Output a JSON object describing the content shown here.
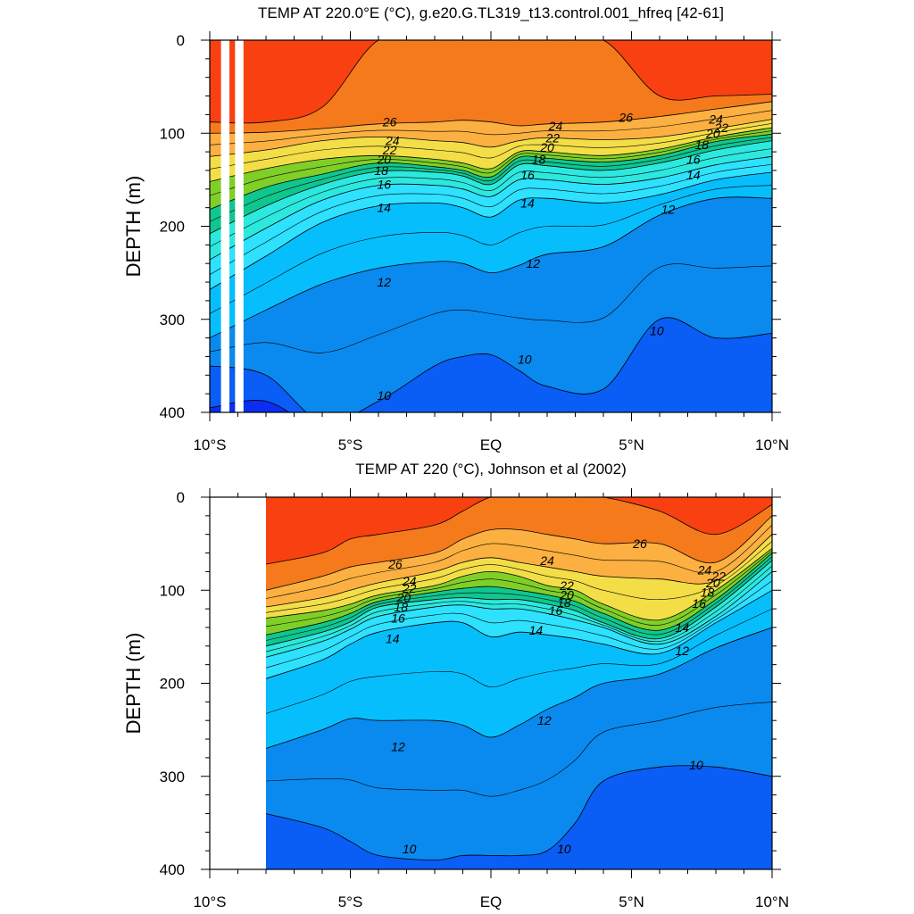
{
  "chart_data": [
    {
      "type": "heatmap",
      "subtype": "filled-contour",
      "title": "TEMP AT 220.0°E (°C), g.e20.G.TL319_t13.control.001_hfreq [42-61]",
      "xlabel": "",
      "ylabel": "DEPTH (m)",
      "xlim": [
        -10,
        10
      ],
      "ylim": [
        400,
        0
      ],
      "y_reversed": true,
      "x_ticks": [
        {
          "v": -10,
          "label": "10°S"
        },
        {
          "v": -5,
          "label": "5°S"
        },
        {
          "v": 0,
          "label": "EQ"
        },
        {
          "v": 5,
          "label": "5°N"
        },
        {
          "v": 10,
          "label": "10°N"
        }
      ],
      "y_ticks": [
        {
          "v": 0,
          "label": "0"
        },
        {
          "v": 100,
          "label": "100"
        },
        {
          "v": 200,
          "label": "200"
        },
        {
          "v": 300,
          "label": "300"
        },
        {
          "v": 400,
          "label": "400"
        }
      ],
      "contour_levels": [
        9,
        10,
        11,
        12,
        13,
        14,
        15,
        16,
        17,
        18,
        19,
        20,
        21,
        22,
        23,
        24,
        25,
        26,
        27
      ],
      "isotherm_depths": {
        "x": [
          -10,
          -8,
          -6,
          -4,
          -2,
          -1,
          0,
          1,
          2,
          4,
          6,
          8,
          10
        ],
        "lines": [
          {
            "t": 27,
            "depth": [
              88,
              88,
              72,
              0,
              0,
              0,
              0,
              0,
              0,
              0,
              60,
              60,
              58
            ]
          },
          {
            "t": 26,
            "depth": [
              100,
              99,
              95,
              90,
              88,
              86,
              88,
              92,
              90,
              88,
              82,
              74,
              66
            ]
          },
          {
            "t": 24,
            "depth": [
              125,
              118,
              108,
              104,
              108,
              110,
              115,
              108,
              105,
              107,
              104,
              95,
              85
            ]
          },
          {
            "t": 22,
            "depth": [
              152,
              138,
              128,
              124,
              128,
              132,
              138,
              120,
              120,
              124,
              117,
              104,
              94
            ]
          },
          {
            "t": 20,
            "depth": [
              182,
              158,
              144,
              132,
              136,
              140,
              147,
              126,
              127,
              131,
              124,
              109,
              101
            ]
          },
          {
            "t": 18,
            "depth": [
              208,
              178,
              155,
              141,
              142,
              146,
              155,
              134,
              135,
              140,
              132,
              118,
              108
            ]
          },
          {
            "t": 16,
            "depth": [
              236,
              202,
              172,
              156,
              156,
              160,
              168,
              150,
              150,
              155,
              148,
              134,
              125
            ]
          },
          {
            "t": 14,
            "depth": [
              268,
              232,
              196,
              178,
              175,
              180,
              190,
              172,
              170,
              175,
              166,
              150,
              142
            ]
          },
          {
            "t": 12,
            "depth": [
              320,
              290,
              262,
              245,
              238,
              240,
              250,
              242,
              230,
              222,
              188,
              170,
              170
            ]
          },
          {
            "t": 10,
            "depth": [
              350,
              360,
              410,
              388,
              350,
              340,
              338,
              355,
              372,
              375,
              300,
              320,
              315
            ]
          },
          {
            "t": 9,
            "depth": [
              395,
              388,
              420,
              420,
              420,
              420,
              420,
              420,
              420,
              420,
              420,
              420,
              420
            ]
          }
        ]
      },
      "contour_labels": [
        {
          "text": "26",
          "x": -3.6,
          "depth": 88,
          "level": 26
        },
        {
          "text": "24",
          "x": -3.5,
          "depth": 108,
          "level": 24
        },
        {
          "text": "22",
          "x": -3.6,
          "depth": 118,
          "level": 22
        },
        {
          "text": "20",
          "x": -3.8,
          "depth": 128,
          "level": 20
        },
        {
          "text": "18",
          "x": -3.9,
          "depth": 140,
          "level": 18
        },
        {
          "text": "16",
          "x": -3.8,
          "depth": 155,
          "level": 16
        },
        {
          "text": "14",
          "x": -3.8,
          "depth": 180,
          "level": 14
        },
        {
          "text": "12",
          "x": -3.8,
          "depth": 260,
          "level": 12
        },
        {
          "text": "10",
          "x": -3.8,
          "depth": 382,
          "level": 10
        },
        {
          "text": "24",
          "x": 2.3,
          "depth": 92,
          "level": 24
        },
        {
          "text": "22",
          "x": 2.2,
          "depth": 105,
          "level": 22
        },
        {
          "text": "20",
          "x": 2.0,
          "depth": 115,
          "level": 20
        },
        {
          "text": "18",
          "x": 1.7,
          "depth": 128,
          "level": 18
        },
        {
          "text": "16",
          "x": 1.3,
          "depth": 145,
          "level": 16
        },
        {
          "text": "14",
          "x": 1.3,
          "depth": 175,
          "level": 14
        },
        {
          "text": "12",
          "x": 1.5,
          "depth": 240,
          "level": 12
        },
        {
          "text": "10",
          "x": 1.2,
          "depth": 343,
          "level": 10
        },
        {
          "text": "26",
          "x": 4.8,
          "depth": 83,
          "level": 26
        },
        {
          "text": "24",
          "x": 8.0,
          "depth": 85,
          "level": 24
        },
        {
          "text": "22",
          "x": 8.2,
          "depth": 94,
          "level": 22
        },
        {
          "text": "20",
          "x": 7.9,
          "depth": 100,
          "level": 20
        },
        {
          "text": "18",
          "x": 7.5,
          "depth": 112,
          "level": 18
        },
        {
          "text": "16",
          "x": 7.2,
          "depth": 128,
          "level": 16
        },
        {
          "text": "14",
          "x": 7.2,
          "depth": 145,
          "level": 14
        },
        {
          "text": "12",
          "x": 6.3,
          "depth": 182,
          "level": 12
        },
        {
          "text": "10",
          "x": 5.9,
          "depth": 312,
          "level": 10
        }
      ],
      "missing_regions": [
        {
          "x_from": -9.6,
          "x_to": -9.3,
          "depth_from": 0,
          "depth_to": 400
        },
        {
          "x_from": -9.1,
          "x_to": -8.8,
          "depth_from": 0,
          "depth_to": 400
        }
      ]
    },
    {
      "type": "heatmap",
      "subtype": "filled-contour",
      "title": "TEMP AT 220 (°C), Johnson et al (2002)",
      "xlabel": "",
      "ylabel": "DEPTH (m)",
      "xlim": [
        -10,
        10
      ],
      "ylim": [
        400,
        0
      ],
      "y_reversed": true,
      "x_ticks": [
        {
          "v": -10,
          "label": "10°S"
        },
        {
          "v": -5,
          "label": "5°S"
        },
        {
          "v": 0,
          "label": "EQ"
        },
        {
          "v": 5,
          "label": "5°N"
        },
        {
          "v": 10,
          "label": "10°N"
        }
      ],
      "y_ticks": [
        {
          "v": 0,
          "label": "0"
        },
        {
          "v": 100,
          "label": "100"
        },
        {
          "v": 200,
          "label": "200"
        },
        {
          "v": 300,
          "label": "300"
        },
        {
          "v": 400,
          "label": "400"
        }
      ],
      "contour_levels": [
        9,
        10,
        11,
        12,
        13,
        14,
        15,
        16,
        17,
        18,
        19,
        20,
        21,
        22,
        23,
        24,
        25,
        26,
        27
      ],
      "isotherm_depths": {
        "x": [
          -8,
          -6,
          -5,
          -4,
          -2,
          -1,
          0,
          1,
          2,
          3,
          4,
          6,
          8,
          10
        ],
        "lines": [
          {
            "t": 27,
            "depth": [
              72,
              60,
              45,
              40,
              30,
              15,
              0,
              0,
              0,
              0,
              0,
              15,
              40,
              8
            ]
          },
          {
            "t": 26,
            "depth": [
              100,
              85,
              75,
              70,
              60,
              45,
              35,
              35,
              40,
              45,
              50,
              50,
              70,
              20
            ]
          },
          {
            "t": 24,
            "depth": [
              118,
              108,
              100,
              92,
              80,
              70,
              65,
              70,
              75,
              80,
              85,
              88,
              90,
              40
            ]
          },
          {
            "t": 22,
            "depth": [
              130,
              122,
              115,
              105,
              95,
              85,
              80,
              85,
              95,
              100,
              115,
              132,
              100,
              55
            ]
          },
          {
            "t": 20,
            "depth": [
              148,
              135,
              125,
              112,
              102,
              98,
              96,
              100,
              105,
              112,
              125,
              143,
              110,
              60
            ]
          },
          {
            "t": 18,
            "depth": [
              160,
              145,
              134,
              118,
              110,
              108,
              110,
              110,
              115,
              122,
              135,
              152,
              118,
              68
            ]
          },
          {
            "t": 16,
            "depth": [
              172,
              155,
              142,
              128,
              118,
              116,
              120,
              120,
              125,
              132,
              140,
              158,
              128,
              80
            ]
          },
          {
            "t": 14,
            "depth": [
              195,
              175,
              158,
              145,
              135,
              135,
              150,
              145,
              148,
              152,
              158,
              168,
              135,
              100
            ]
          },
          {
            "t": 12,
            "depth": [
              270,
              250,
              238,
              240,
              240,
              245,
              258,
              245,
              228,
              215,
              200,
              190,
              162,
              140
            ]
          },
          {
            "t": 10,
            "depth": [
              340,
              355,
              370,
              385,
              390,
              385,
              385,
              385,
              380,
              350,
              305,
              290,
              290,
              300
            ]
          },
          {
            "t": 9,
            "depth": [
              420,
              420,
              420,
              420,
              420,
              420,
              420,
              420,
              420,
              420,
              420,
              420,
              420,
              420
            ]
          }
        ]
      },
      "contour_labels": [
        {
          "text": "26",
          "x": -3.4,
          "depth": 72,
          "level": 26
        },
        {
          "text": "24",
          "x": -2.9,
          "depth": 90,
          "level": 24
        },
        {
          "text": "22",
          "x": -2.9,
          "depth": 98,
          "level": 22
        },
        {
          "text": "20",
          "x": -3.1,
          "depth": 108,
          "level": 20
        },
        {
          "text": "18",
          "x": -3.2,
          "depth": 118,
          "level": 18
        },
        {
          "text": "16",
          "x": -3.3,
          "depth": 130,
          "level": 16
        },
        {
          "text": "14",
          "x": -3.5,
          "depth": 152,
          "level": 14
        },
        {
          "text": "12",
          "x": -3.3,
          "depth": 268,
          "level": 12
        },
        {
          "text": "10",
          "x": -2.9,
          "depth": 378,
          "level": 10
        },
        {
          "text": "24",
          "x": 2.0,
          "depth": 68,
          "level": 24
        },
        {
          "text": "22",
          "x": 2.7,
          "depth": 95,
          "level": 22
        },
        {
          "text": "20",
          "x": 2.7,
          "depth": 105,
          "level": 20
        },
        {
          "text": "18",
          "x": 2.6,
          "depth": 113,
          "level": 18
        },
        {
          "text": "16",
          "x": 2.3,
          "depth": 122,
          "level": 16
        },
        {
          "text": "14",
          "x": 1.6,
          "depth": 143,
          "level": 14
        },
        {
          "text": "12",
          "x": 1.9,
          "depth": 240,
          "level": 12
        },
        {
          "text": "10",
          "x": 2.6,
          "depth": 378,
          "level": 10
        },
        {
          "text": "26",
          "x": 5.3,
          "depth": 50,
          "level": 26
        },
        {
          "text": "24",
          "x": 7.6,
          "depth": 78,
          "level": 24
        },
        {
          "text": "22",
          "x": 8.1,
          "depth": 85,
          "level": 22
        },
        {
          "text": "20",
          "x": 7.9,
          "depth": 92,
          "level": 20
        },
        {
          "text": "18",
          "x": 7.7,
          "depth": 102,
          "level": 18
        },
        {
          "text": "16",
          "x": 7.4,
          "depth": 114,
          "level": 16
        },
        {
          "text": "14",
          "x": 6.8,
          "depth": 140,
          "level": 14
        },
        {
          "text": "12",
          "x": 6.8,
          "depth": 165,
          "level": 12
        },
        {
          "text": "10",
          "x": 7.3,
          "depth": 288,
          "level": 10
        }
      ],
      "missing_regions": [
        {
          "x_from": -10,
          "x_to": -8,
          "depth_from": 0,
          "depth_to": 400
        }
      ]
    }
  ],
  "colors": {
    "background": "#ffffff",
    "missing": "#ffffff",
    "levels": [
      {
        "above": 27,
        "color": "#f94010"
      },
      {
        "above": 26,
        "color": "#f57a1c"
      },
      {
        "above": 25,
        "color": "#f99425"
      },
      {
        "above": 24,
        "color": "#fbb041"
      },
      {
        "above": 23,
        "color": "#fbc44a"
      },
      {
        "above": 22,
        "color": "#f3de47"
      },
      {
        "above": 21,
        "color": "#bedb2c"
      },
      {
        "above": 20,
        "color": "#80cf28"
      },
      {
        "above": 19,
        "color": "#2fca24"
      },
      {
        "above": 18,
        "color": "#10c68f"
      },
      {
        "above": 17,
        "color": "#1fe3c0"
      },
      {
        "above": 16,
        "color": "#2de8de"
      },
      {
        "above": 15,
        "color": "#31eef2"
      },
      {
        "above": 14,
        "color": "#2ee1ff"
      },
      {
        "above": 13,
        "color": "#17cffd"
      },
      {
        "above": 12,
        "color": "#07befd"
      },
      {
        "above": 11,
        "color": "#08a6f8"
      },
      {
        "above": 10,
        "color": "#0a8aee"
      },
      {
        "above": 9,
        "color": "#0a5df5"
      },
      {
        "above": -99,
        "color": "#0a2ef2"
      }
    ]
  }
}
